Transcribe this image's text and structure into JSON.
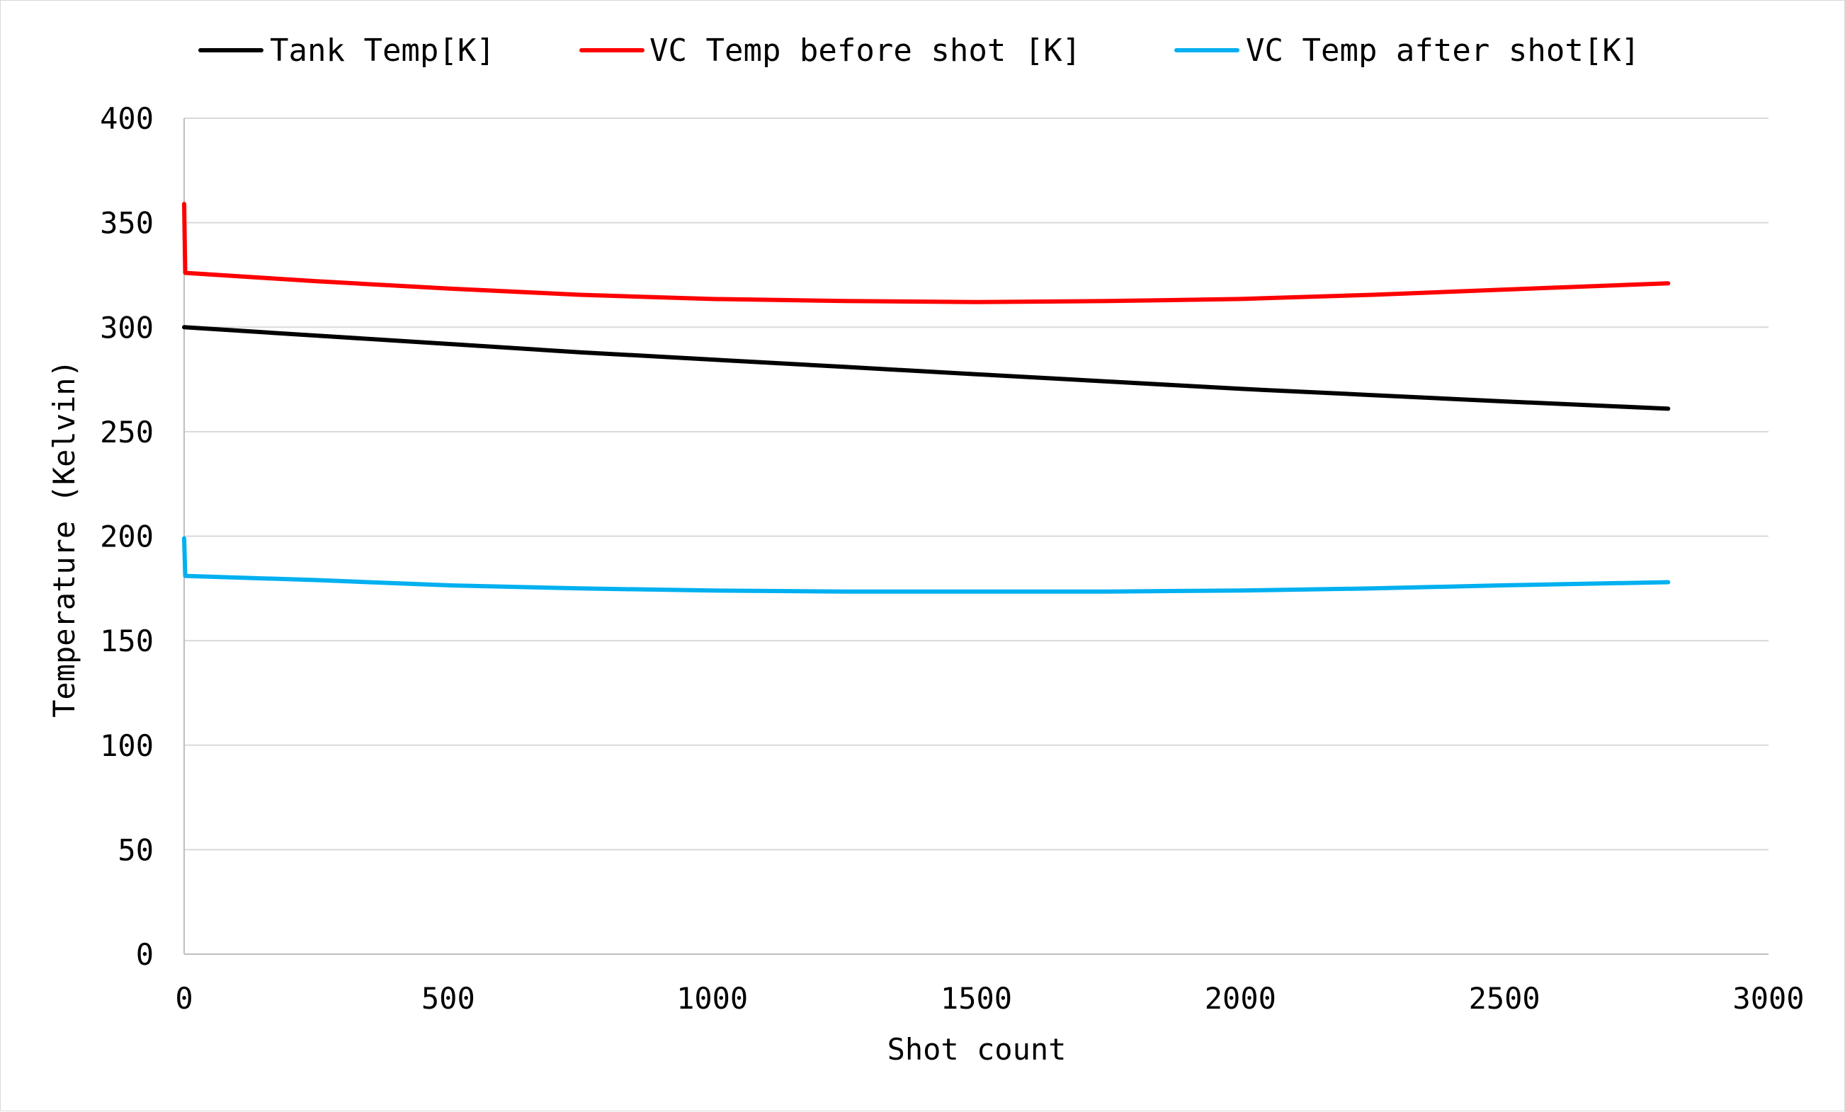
{
  "chart_data": {
    "type": "line",
    "title": "",
    "xlabel": "Shot count",
    "ylabel": "Temperature (Kelvin)",
    "xlim": [
      0,
      3000
    ],
    "ylim": [
      0,
      400
    ],
    "x_ticks": [
      0,
      500,
      1000,
      1500,
      2000,
      2500,
      3000
    ],
    "y_ticks": [
      0,
      50,
      100,
      150,
      200,
      250,
      300,
      350,
      400
    ],
    "grid": "horizontal",
    "legend_position": "top",
    "series": [
      {
        "name": "Tank Temp[K]",
        "color": "#000000",
        "points": [
          [
            0,
            300
          ],
          [
            250,
            296
          ],
          [
            500,
            292
          ],
          [
            750,
            288
          ],
          [
            1000,
            284.5
          ],
          [
            1250,
            281
          ],
          [
            1500,
            277.5
          ],
          [
            1750,
            274
          ],
          [
            2000,
            270.5
          ],
          [
            2250,
            267.5
          ],
          [
            2500,
            264.5
          ],
          [
            2810,
            261
          ]
        ]
      },
      {
        "name": "VC Temp before shot [K]",
        "color": "#ff0000",
        "points": [
          [
            0,
            359
          ],
          [
            2,
            326
          ],
          [
            250,
            322
          ],
          [
            500,
            318.5
          ],
          [
            750,
            315.5
          ],
          [
            1000,
            313.5
          ],
          [
            1250,
            312.5
          ],
          [
            1500,
            312
          ],
          [
            1750,
            312.5
          ],
          [
            2000,
            313.5
          ],
          [
            2250,
            315.5
          ],
          [
            2500,
            318
          ],
          [
            2810,
            321
          ]
        ]
      },
      {
        "name": "VC Temp after shot[K]",
        "color": "#00b0f0",
        "points": [
          [
            0,
            199
          ],
          [
            2,
            181
          ],
          [
            250,
            179
          ],
          [
            500,
            176.5
          ],
          [
            750,
            175
          ],
          [
            1000,
            174
          ],
          [
            1250,
            173.5
          ],
          [
            1500,
            173.5
          ],
          [
            1750,
            173.5
          ],
          [
            2000,
            174
          ],
          [
            2250,
            175
          ],
          [
            2500,
            176.5
          ],
          [
            2810,
            178
          ]
        ]
      }
    ]
  }
}
